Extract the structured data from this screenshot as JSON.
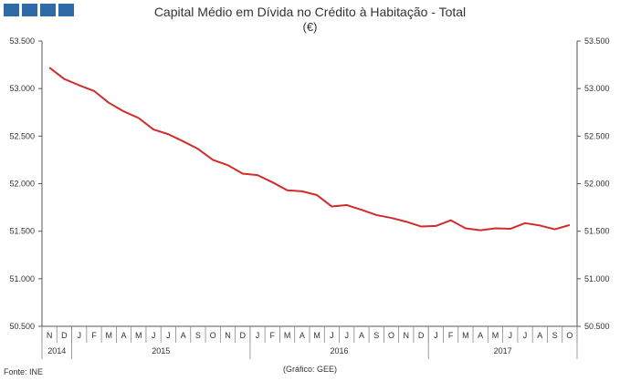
{
  "logo": {
    "name": "gee-logo-squares"
  },
  "source": "Fonte: INE",
  "credit": "(Gráfico: GEE)",
  "chart_data": {
    "type": "line",
    "title": "Capital Médio em Dívida no Crédito à Habitação - Total",
    "subtitle": "(€)",
    "ylim": [
      50500,
      53500
    ],
    "yticks": [
      53500,
      53000,
      52500,
      52000,
      51500,
      51000,
      50500
    ],
    "ytick_labels": [
      "53.500",
      "53.000",
      "52.500",
      "52.000",
      "51.500",
      "51.000",
      "50.500"
    ],
    "month_labels": [
      "N",
      "D",
      "J",
      "F",
      "M",
      "A",
      "M",
      "J",
      "J",
      "A",
      "S",
      "O",
      "N",
      "D",
      "J",
      "F",
      "M",
      "A",
      "M",
      "J",
      "J",
      "A",
      "S",
      "O",
      "N",
      "D",
      "J",
      "F",
      "M",
      "A",
      "M",
      "J",
      "J",
      "A",
      "S",
      "O"
    ],
    "years": [
      {
        "label": "2014",
        "start": 0,
        "end": 1
      },
      {
        "label": "2015",
        "start": 2,
        "end": 13
      },
      {
        "label": "2016",
        "start": 14,
        "end": 25
      },
      {
        "label": "2017",
        "start": 26,
        "end": 35
      }
    ],
    "series": [
      {
        "name": "Total",
        "color": "#d22b2b",
        "values": [
          53220,
          53100,
          53035,
          52975,
          52850,
          52760,
          52690,
          52570,
          52520,
          52445,
          52365,
          52250,
          52195,
          52105,
          52090,
          52015,
          51930,
          51920,
          51880,
          51760,
          51775,
          51725,
          51670,
          51640,
          51600,
          51550,
          51555,
          51615,
          51530,
          51510,
          51530,
          51525,
          51585,
          51560,
          51520,
          51565
        ]
      }
    ],
    "grid": false,
    "legend": "none"
  }
}
